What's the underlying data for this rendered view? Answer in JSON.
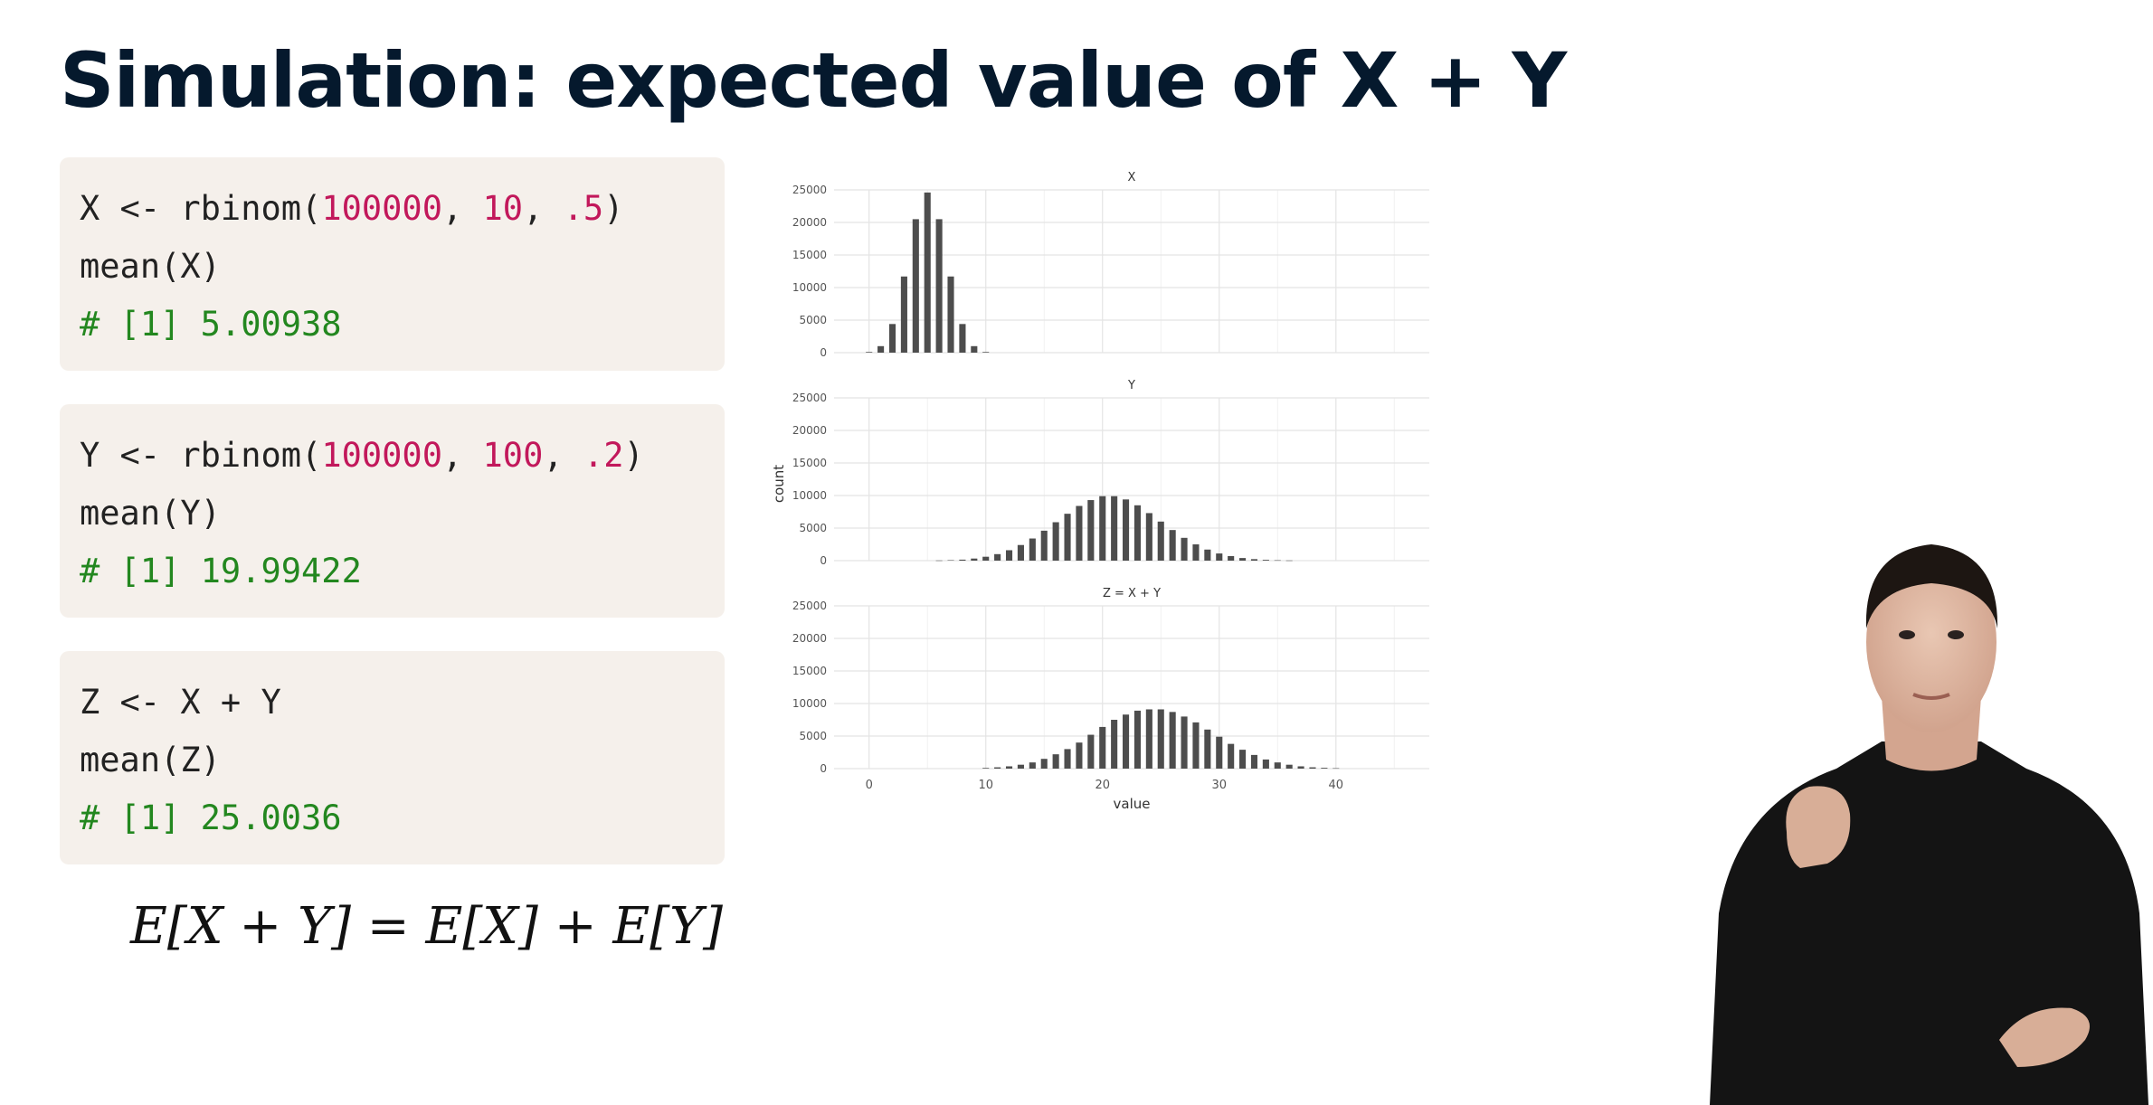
{
  "slide": {
    "title": "Simulation: expected value of X + Y"
  },
  "code_blocks": [
    {
      "lines": [
        [
          {
            "t": "X <- rbinom(",
            "c": "code"
          },
          {
            "t": "100000",
            "c": "num"
          },
          {
            "t": ", ",
            "c": "code"
          },
          {
            "t": "10",
            "c": "num"
          },
          {
            "t": ", ",
            "c": "code"
          },
          {
            "t": ".5",
            "c": "num"
          },
          {
            "t": ")",
            "c": "code"
          }
        ],
        [
          {
            "t": "mean(X)",
            "c": "code"
          }
        ],
        [
          {
            "t": "# [1] 5.00938",
            "c": "cmt"
          }
        ]
      ]
    },
    {
      "lines": [
        [
          {
            "t": "Y <- rbinom(",
            "c": "code"
          },
          {
            "t": "100000",
            "c": "num"
          },
          {
            "t": ", ",
            "c": "code"
          },
          {
            "t": "100",
            "c": "num"
          },
          {
            "t": ", ",
            "c": "code"
          },
          {
            "t": ".2",
            "c": "num"
          },
          {
            "t": ")",
            "c": "code"
          }
        ],
        [
          {
            "t": "mean(Y)",
            "c": "code"
          }
        ],
        [
          {
            "t": "# [1] 19.99422",
            "c": "cmt"
          }
        ]
      ]
    },
    {
      "lines": [
        [
          {
            "t": "Z <- X + Y",
            "c": "code"
          }
        ],
        [
          {
            "t": "mean(Z)",
            "c": "code"
          }
        ],
        [
          {
            "t": "# [1] 25.0036",
            "c": "cmt"
          }
        ]
      ]
    }
  ],
  "formula": "E[X + Y] = E[X] + E[Y]",
  "colors": {
    "title": "#05192d",
    "code_bg": "#f5f0eb",
    "number": "#c2185b",
    "comment": "#23871f",
    "bar": "#4d4d4d"
  },
  "chart_data": {
    "type": "bar",
    "xlabel": "value",
    "ylabel": "count",
    "xlim": [
      -3,
      48
    ],
    "ylim": [
      0,
      25000
    ],
    "x_ticks": [
      0,
      10,
      20,
      30,
      40
    ],
    "y_ticks": [
      0,
      5000,
      10000,
      15000,
      20000,
      25000
    ],
    "grid": true,
    "panels": [
      {
        "title": "X",
        "x": [
          0,
          1,
          2,
          3,
          4,
          5,
          6,
          7,
          8,
          9,
          10
        ],
        "values": [
          100,
          1000,
          4400,
          11700,
          20500,
          24600,
          20500,
          11700,
          4400,
          1000,
          100
        ]
      },
      {
        "title": "Y",
        "x": [
          6,
          7,
          8,
          9,
          10,
          11,
          12,
          13,
          14,
          15,
          16,
          17,
          18,
          19,
          20,
          21,
          22,
          23,
          24,
          25,
          26,
          27,
          28,
          29,
          30,
          31,
          32,
          33,
          34,
          35,
          36
        ],
        "values": [
          30,
          70,
          150,
          320,
          600,
          1000,
          1600,
          2400,
          3400,
          4600,
          5900,
          7200,
          8400,
          9300,
          9900,
          9900,
          9400,
          8500,
          7300,
          6000,
          4700,
          3500,
          2500,
          1700,
          1100,
          700,
          400,
          230,
          120,
          60,
          30
        ]
      },
      {
        "title": "Z = X + Y",
        "x": [
          10,
          11,
          12,
          13,
          14,
          15,
          16,
          17,
          18,
          19,
          20,
          21,
          22,
          23,
          24,
          25,
          26,
          27,
          28,
          29,
          30,
          31,
          32,
          33,
          34,
          35,
          36,
          37,
          38,
          39,
          40
        ],
        "values": [
          100,
          200,
          350,
          600,
          950,
          1500,
          2200,
          3000,
          4000,
          5200,
          6400,
          7500,
          8300,
          8900,
          9100,
          9100,
          8700,
          8000,
          7100,
          6000,
          4900,
          3800,
          2900,
          2100,
          1400,
          950,
          600,
          350,
          200,
          120,
          60
        ]
      }
    ]
  }
}
